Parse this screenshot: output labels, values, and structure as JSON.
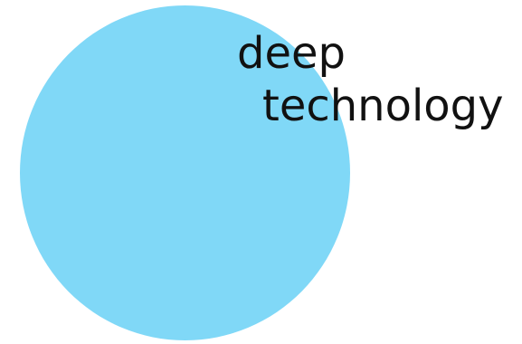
{
  "diagram": {
    "shape": "circle",
    "fill_color": "#80d8f7",
    "text_color": "#111111",
    "label_lines": [
      "deep",
      "technology"
    ]
  }
}
